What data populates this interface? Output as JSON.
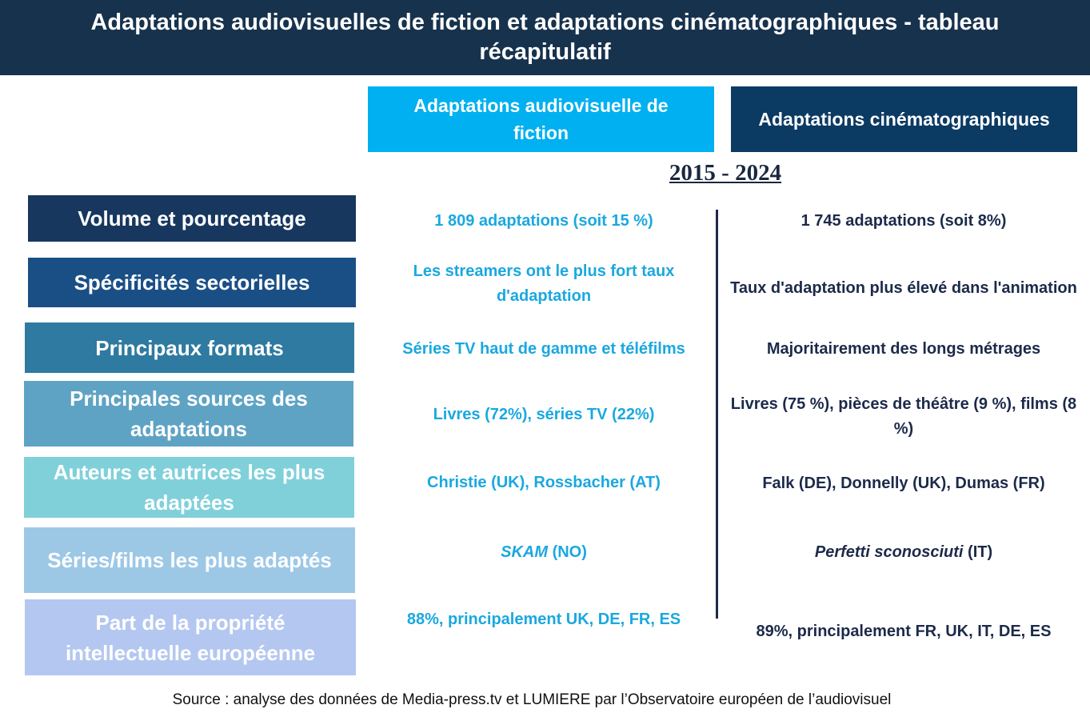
{
  "header": {
    "title": "Adaptations audiovisuelles de fiction et adaptations cinématographiques - tableau récapitulatif"
  },
  "columns": [
    "Adaptations audiovisuelle de fiction",
    "Adaptations cinématographiques"
  ],
  "period": "2015 - 2024",
  "rows": [
    {
      "label": "Volume et pourcentage",
      "fiction": "1 809 adaptations (soit 15 %)",
      "cinema": "1 745 adaptations (soit 8%)"
    },
    {
      "label": "Spécificités sectorielles",
      "fiction": "Les streamers ont le plus fort taux d'adaptation",
      "cinema": "Taux d'adaptation plus élevé dans l'animation"
    },
    {
      "label": "Principaux formats",
      "fiction": "Séries TV haut de gamme et téléfilms",
      "cinema": "Majoritairement des longs métrages"
    },
    {
      "label": "Principales sources des adaptations",
      "fiction": "Livres (72%), séries TV (22%)",
      "cinema": "Livres (75 %), pièces de théâtre (9 %), films (8 %)"
    },
    {
      "label": "Auteurs et autrices les plus adaptées",
      "fiction": "Christie (UK), Rossbacher (AT)",
      "cinema": "Falk (DE), Donnelly (UK), Dumas (FR)"
    },
    {
      "label": "Séries/films les plus adaptés",
      "fiction": [
        "SKAM",
        "(NO)"
      ],
      "cinema": [
        "Perfetti sconosciuti",
        "(IT)"
      ]
    },
    {
      "label": "Part de la propriété intellectuelle européenne",
      "fiction": "88%, principalement UK, DE, FR, ES",
      "cinema": "89%, principalement FR, UK, IT, DE, ES"
    }
  ],
  "source": "Source : analyse des données de Media-press.tv et LUMIERE par l’Observatoire européen de l’audiovisuel"
}
